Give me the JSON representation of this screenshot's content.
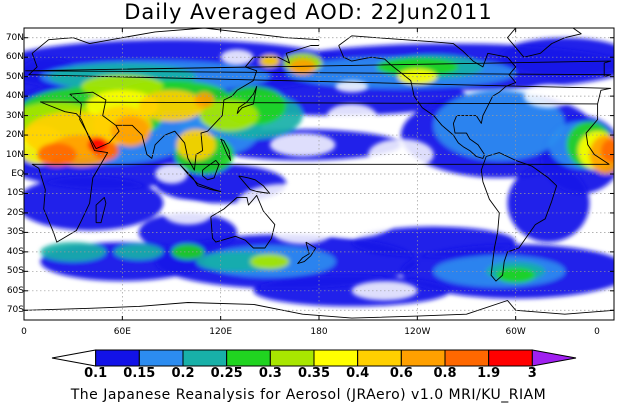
{
  "title": "Daily Averaged AOD: 22Jun2011",
  "caption": "The Japanese Reanalysis for Aerosol (JRAero) v1.0 MRI/KU_RIAM",
  "map": {
    "projection": "equirectangular, 0–360 longitude",
    "lon_range": [
      0,
      360
    ],
    "lat_range": [
      -75,
      75
    ],
    "grid": "dotted",
    "lat_labels": [
      "70N",
      "60N",
      "50N",
      "40N",
      "30N",
      "20N",
      "10N",
      "EQ",
      "10S",
      "20S",
      "30S",
      "40S",
      "50S",
      "60S",
      "70S"
    ],
    "lon_labels": [
      "0",
      "60E",
      "120E",
      "180",
      "120W",
      "60W",
      "0"
    ],
    "field": "aerosol optical depth"
  },
  "legend": {
    "levels": [
      "0.1",
      "0.15",
      "0.2",
      "0.25",
      "0.3",
      "0.35",
      "0.4",
      "0.6",
      "0.8",
      "1.9",
      "3"
    ],
    "colors": [
      "#ffffff",
      "#1212e8",
      "#2c8cf0",
      "#18b0a8",
      "#20d420",
      "#a8e600",
      "#ffff00",
      "#ffd000",
      "#ffa000",
      "#ff6800",
      "#ff0000",
      "#a020f0"
    ]
  }
}
